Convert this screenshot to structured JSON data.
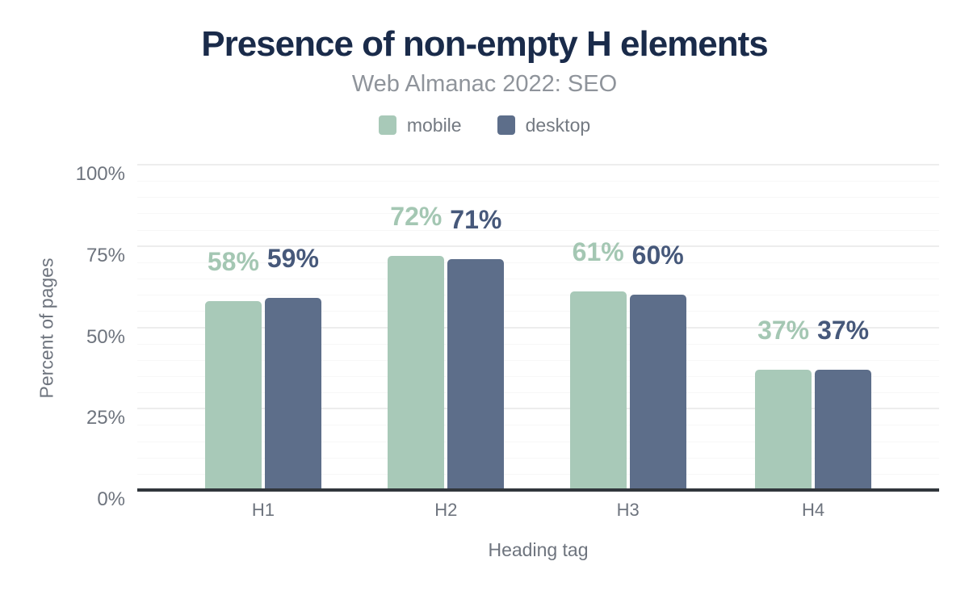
{
  "page": {
    "background": "#ffffff",
    "title_color": "#1a2b4a",
    "subtitle_color": "#8f949b",
    "axis_text_color": "#6e747e",
    "axis_line_color": "#31363c",
    "major_grid_color": "#ededed",
    "minor_grid_color": "#f7f7f7"
  },
  "chart_data": {
    "type": "bar",
    "title": "Presence of non-empty H elements",
    "subtitle": "Web Almanac 2022: SEO",
    "xlabel": "Heading tag",
    "ylabel": "Percent of pages",
    "categories": [
      "H1",
      "H2",
      "H3",
      "H4"
    ],
    "series": [
      {
        "name": "mobile",
        "color": "#a8c9b8",
        "label_color": "#a4c7b3",
        "values": [
          58,
          72,
          61,
          37
        ],
        "labels": [
          "58%",
          "72%",
          "61%",
          "37%"
        ]
      },
      {
        "name": "desktop",
        "color": "#5d6e8a",
        "label_color": "#46587a",
        "values": [
          59,
          71,
          60,
          37
        ],
        "labels": [
          "59%",
          "71%",
          "60%",
          "37%"
        ]
      }
    ],
    "ylim": [
      0,
      100
    ],
    "yticks": [
      {
        "value": 0,
        "label": "0%"
      },
      {
        "value": 25,
        "label": "25%"
      },
      {
        "value": 50,
        "label": "50%"
      },
      {
        "value": 75,
        "label": "75%"
      },
      {
        "value": 100,
        "label": "100%"
      }
    ],
    "minor_grid_step": 5,
    "grid": true,
    "legend_position": "top"
  }
}
